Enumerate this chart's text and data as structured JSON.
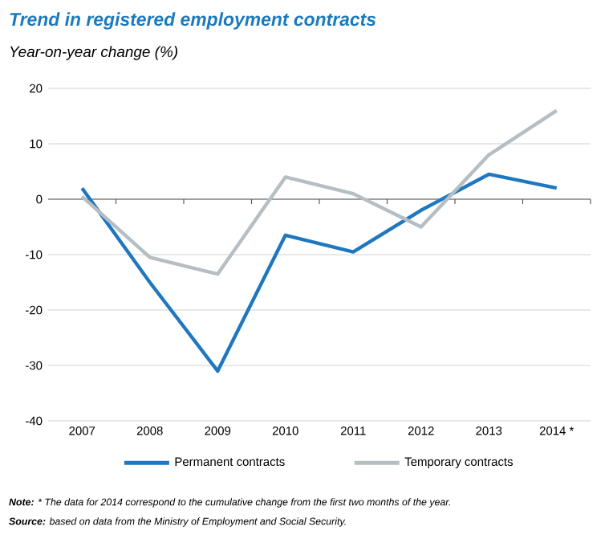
{
  "chart_data": {
    "type": "line",
    "title": "Trend in registered employment contracts",
    "subtitle": "Year-on-year change (%)",
    "categories": [
      "2007",
      "2008",
      "2009",
      "2010",
      "2011",
      "2012",
      "2013",
      "2014 *"
    ],
    "series": [
      {
        "name": "Permanent contracts",
        "color": "#1f78bf",
        "values": [
          2,
          -15,
          -31,
          -6.5,
          -9.5,
          -2,
          4.5,
          2
        ]
      },
      {
        "name": "Temporary contracts",
        "color": "#b4bec3",
        "values": [
          0.5,
          -10.5,
          -13.5,
          4,
          1,
          -5,
          8,
          16
        ]
      }
    ],
    "ylim": [
      -40,
      20
    ],
    "yticks": [
      -40,
      -30,
      -20,
      -10,
      0,
      10,
      20
    ],
    "grid": "y",
    "legend": "bottom",
    "marker": "none",
    "line_style": "solid",
    "annotations": [
      "**Note:** * The data for 2014 correspond to the cumulative change from the first two months of the year.",
      "**Source:** based on data from the Ministry of Employment and Social Security."
    ]
  }
}
